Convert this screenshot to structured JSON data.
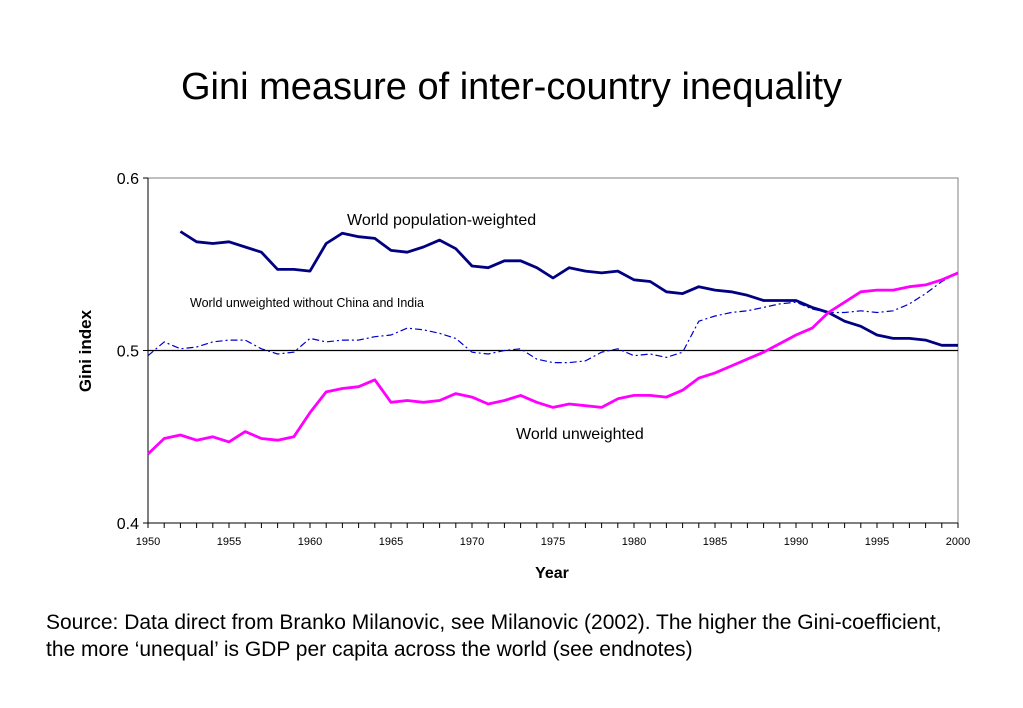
{
  "slide": {
    "title": "Gini measure of inter-country inequality",
    "caption": "Source: Data direct from Branko Milanovic, see Milanovic (2002). The higher the Gini-coefficient, the more ‘unequal’ is GDP per capita across the world (see endnotes)"
  },
  "chart_data": {
    "type": "line",
    "title": "",
    "xlabel": "Year",
    "ylabel": "Gini index",
    "xlim": [
      1950,
      2000
    ],
    "ylim": [
      0.4,
      0.6
    ],
    "x_ticks": [
      "1950",
      "1955",
      "1960",
      "1965",
      "1970",
      "1975",
      "1980",
      "1985",
      "1990",
      "1995",
      "2000"
    ],
    "y_ticks": [
      "0.4",
      "0.5",
      "0.6"
    ],
    "grid": false,
    "reference_line": 0.5,
    "series": [
      {
        "name": "World population-weighted",
        "color": "#000080",
        "style": "solid",
        "x": [
          1952,
          1953,
          1954,
          1955,
          1956,
          1957,
          1958,
          1959,
          1960,
          1961,
          1962,
          1963,
          1964,
          1965,
          1966,
          1967,
          1968,
          1969,
          1970,
          1971,
          1972,
          1973,
          1974,
          1975,
          1976,
          1977,
          1978,
          1979,
          1980,
          1981,
          1982,
          1983,
          1984,
          1985,
          1986,
          1987,
          1988,
          1989,
          1990,
          1991,
          1992,
          1993,
          1994,
          1995,
          1996,
          1997,
          1998,
          1999,
          2000
        ],
        "y": [
          0.569,
          0.563,
          0.562,
          0.563,
          0.56,
          0.557,
          0.547,
          0.547,
          0.546,
          0.562,
          0.568,
          0.566,
          0.565,
          0.558,
          0.557,
          0.56,
          0.564,
          0.559,
          0.549,
          0.548,
          0.552,
          0.552,
          0.548,
          0.542,
          0.548,
          0.546,
          0.545,
          0.546,
          0.541,
          0.54,
          0.534,
          0.533,
          0.537,
          0.535,
          0.534,
          0.532,
          0.529,
          0.529,
          0.529,
          0.525,
          0.522,
          0.517,
          0.514,
          0.509,
          0.507,
          0.507,
          0.506,
          0.503,
          0.503
        ]
      },
      {
        "name": "World unweighted without China and India",
        "color": "#0000cc",
        "style": "dashdot",
        "x": [
          1950,
          1951,
          1952,
          1953,
          1954,
          1955,
          1956,
          1957,
          1958,
          1959,
          1960,
          1961,
          1962,
          1963,
          1964,
          1965,
          1966,
          1967,
          1968,
          1969,
          1970,
          1971,
          1972,
          1973,
          1974,
          1975,
          1976,
          1977,
          1978,
          1979,
          1980,
          1981,
          1982,
          1983,
          1984,
          1985,
          1986,
          1987,
          1988,
          1989,
          1990,
          1991,
          1992,
          1993,
          1994,
          1995,
          1996,
          1997,
          1998,
          1999,
          2000
        ],
        "y": [
          0.497,
          0.505,
          0.501,
          0.502,
          0.505,
          0.506,
          0.506,
          0.501,
          0.498,
          0.499,
          0.507,
          0.505,
          0.506,
          0.506,
          0.508,
          0.509,
          0.513,
          0.512,
          0.51,
          0.507,
          0.499,
          0.498,
          0.5,
          0.501,
          0.495,
          0.493,
          0.493,
          0.494,
          0.499,
          0.501,
          0.497,
          0.498,
          0.496,
          0.499,
          0.517,
          0.52,
          0.522,
          0.523,
          0.525,
          0.527,
          0.528,
          0.524,
          0.522,
          0.522,
          0.523,
          0.522,
          0.523,
          0.527,
          0.533,
          0.54,
          0.545
        ]
      },
      {
        "name": "World unweighted",
        "color": "#ff00ff",
        "style": "solid",
        "x": [
          1950,
          1951,
          1952,
          1953,
          1954,
          1955,
          1956,
          1957,
          1958,
          1959,
          1960,
          1961,
          1962,
          1963,
          1964,
          1965,
          1966,
          1967,
          1968,
          1969,
          1970,
          1971,
          1972,
          1973,
          1974,
          1975,
          1976,
          1977,
          1978,
          1979,
          1980,
          1981,
          1982,
          1983,
          1984,
          1985,
          1986,
          1987,
          1988,
          1989,
          1990,
          1991,
          1992,
          1993,
          1994,
          1995,
          1996,
          1997,
          1998,
          1999,
          2000
        ],
        "y": [
          0.44,
          0.449,
          0.451,
          0.448,
          0.45,
          0.447,
          0.453,
          0.449,
          0.448,
          0.45,
          0.464,
          0.476,
          0.478,
          0.479,
          0.483,
          0.47,
          0.471,
          0.47,
          0.471,
          0.475,
          0.473,
          0.469,
          0.471,
          0.474,
          0.47,
          0.467,
          0.469,
          0.468,
          0.467,
          0.472,
          0.474,
          0.474,
          0.473,
          0.477,
          0.484,
          0.487,
          0.491,
          0.495,
          0.499,
          0.504,
          0.509,
          0.513,
          0.522,
          0.528,
          0.534,
          0.535,
          0.535,
          0.537,
          0.538,
          0.541,
          0.545
        ]
      }
    ]
  }
}
